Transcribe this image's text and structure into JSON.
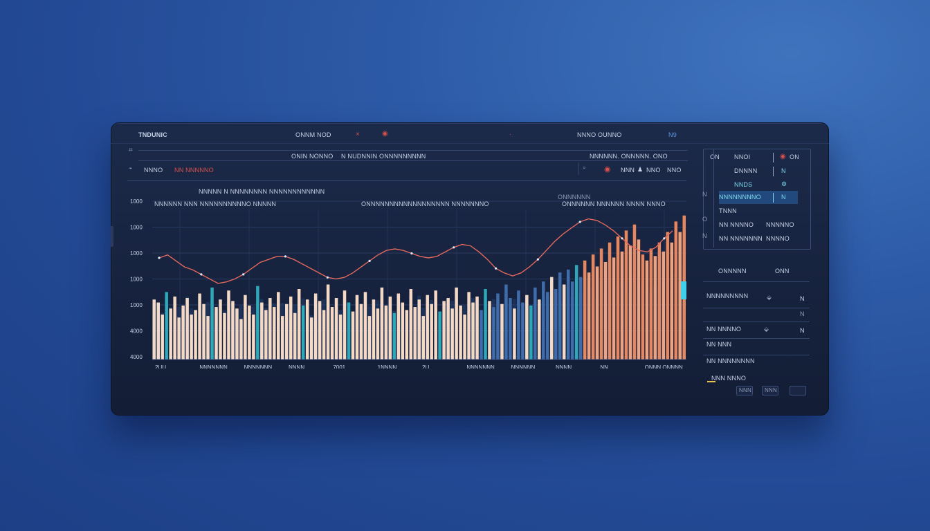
{
  "colors": {
    "bar_light": "#f3d9c6",
    "bar_orange": "#e8875e",
    "bar_blue": "#3f6cab",
    "bar_teal": "#2ea7b8",
    "line": "#e2685c",
    "accent_red": "#d8504a",
    "accent_blue": "#5a98e4"
  },
  "header": {
    "title": "TNDUNIC",
    "center": "ONNM NOD",
    "right": "NNNO OUNNO",
    "right_marks": "N9",
    "icons": [
      "close-icon",
      "record-icon",
      "info-icon"
    ]
  },
  "toolbar": {
    "row1_left": "ONIN NONNO",
    "row1_mid": "N NUDNNIN ONNNNNNNNN",
    "row1_right": "NNNNNN. ONNNNN. ONO",
    "row2_left": "NNNO",
    "row2_red": "NN NNNNNO",
    "row2_icons": [
      "record-icon",
      "play-icon",
      "user-icon",
      "music-icon"
    ],
    "row2_labels": [
      "NNN",
      "NNO",
      "NNO"
    ]
  },
  "chart_header": {
    "line1": "NNNNN N NNNNNNNN NNNNNNNNNNNN",
    "line2a": "NNNNNN NNN NNNNNNNNNNO NNNNN",
    "line2b": "ONNNNNNNNNNNNNNNNNN NNNNNNNO",
    "note_top": "ONNNNNN",
    "note_bottom": "ONNNNNN NNNNNN NNNN NNNO"
  },
  "chart_data": {
    "type": "bar",
    "yticks": [
      "4000",
      "4000",
      "1000",
      "1000",
      "1000",
      "1000",
      "1000"
    ],
    "xticks": [
      "2UU",
      "NNNNNNN",
      "NNNNNNN",
      "NNNN",
      "7001",
      "1NNNN",
      "2U",
      "NNNNNNN",
      "NNNNNN",
      "NNNN",
      "NN",
      "ONNN ONNNN"
    ],
    "bars": [
      40,
      38,
      30,
      45,
      34,
      42,
      28,
      36,
      41,
      30,
      33,
      44,
      37,
      29,
      48,
      35,
      40,
      31,
      46,
      39,
      34,
      27,
      43,
      36,
      30,
      49,
      38,
      33,
      41,
      35,
      45,
      29,
      37,
      42,
      31,
      47,
      36,
      40,
      28,
      44,
      39,
      33,
      50,
      35,
      41,
      30,
      46,
      38,
      32,
      43,
      37,
      45,
      29,
      40,
      34,
      48,
      36,
      42,
      31,
      44,
      38,
      33,
      47,
      35,
      40,
      29,
      43,
      37,
      46,
      32,
      39,
      41,
      34,
      48,
      36,
      30,
      45,
      38,
      42,
      33,
      47,
      39,
      35,
      44,
      37,
      50,
      41,
      34,
      46,
      38,
      43,
      36,
      48,
      40,
      52,
      45,
      55,
      47,
      58,
      50,
      60,
      52,
      63,
      55,
      66,
      58,
      70,
      62,
      74,
      65,
      78,
      68,
      82,
      72,
      86,
      76,
      90,
      80,
      70,
      66,
      74,
      69,
      78,
      72,
      85,
      78,
      92,
      85,
      96
    ],
    "bar_colors_by_region": [
      "light",
      "light",
      "light",
      "light",
      "light",
      "light",
      "blue",
      "blue",
      "orange",
      "orange"
    ],
    "line": [
      47,
      49,
      45,
      41,
      39,
      36,
      33,
      30,
      31,
      33,
      36,
      40,
      44,
      46,
      48,
      48,
      46,
      43,
      40,
      37,
      34,
      33,
      34,
      37,
      41,
      45,
      49,
      52,
      53,
      52,
      50,
      48,
      47,
      48,
      51,
      54,
      56,
      55,
      51,
      46,
      40,
      37,
      35,
      37,
      41,
      46,
      52,
      58,
      63,
      67,
      71,
      73,
      72,
      69,
      65,
      60,
      55,
      52,
      51,
      54,
      60,
      65
    ],
    "ylim": [
      0,
      100
    ]
  },
  "side_panel": {
    "rows": [
      {
        "label": "NNOI",
        "value": "O",
        "marker": "ON"
      },
      {
        "label": "DNNNN",
        "value": "N"
      },
      {
        "label": "NNDS",
        "value": "N"
      },
      {
        "label": "NNNNNNNNO",
        "value": "N"
      },
      {
        "label": "TNNN",
        "value": ""
      },
      {
        "label": "NN NNNNO",
        "value": "NNNNNO"
      },
      {
        "label": "NN NNNNNNN",
        "value": "NNNNO"
      }
    ],
    "left_marks": [
      "ON",
      "N",
      "O",
      "N"
    ]
  },
  "stats": {
    "header_left": "ONNNNN",
    "header_right": "ONN",
    "rows": [
      {
        "label": "NNNNNNNNN",
        "icon": "drop-icon",
        "value": "N"
      },
      {
        "label": "NN NNNNO",
        "icon": "",
        "value": "N"
      },
      {
        "label": "NN NNN",
        "icon": "drop-icon",
        "value": "N"
      },
      {
        "label": "NN NNNNNNNN",
        "icon": "",
        "value": ""
      },
      {
        "label": "NNN NNNO",
        "icon": "",
        "value": ""
      }
    ],
    "footer_buttons": [
      "NNN",
      "NNN",
      ""
    ]
  }
}
